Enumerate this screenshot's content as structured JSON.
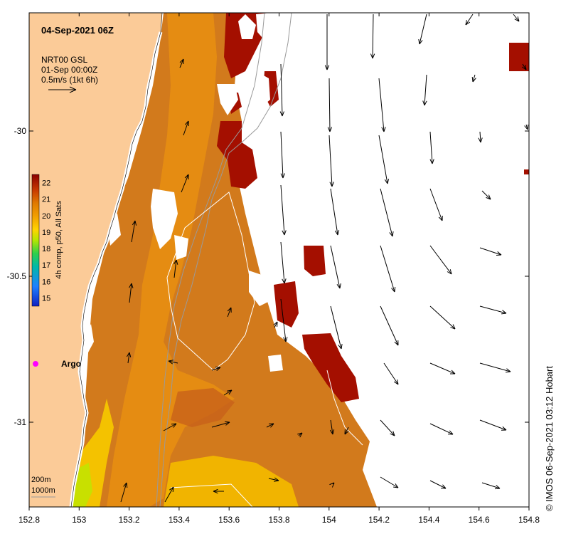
{
  "title": "04-Sep-2021 06Z",
  "current_note": {
    "line1": "NRT00 GSL",
    "line2": "01-Sep 00:00Z",
    "line3": "0.5m/s (1kt 6h)"
  },
  "colorbar": {
    "label": "4h comp, p50, All Sats",
    "ticks": [
      "22",
      "21",
      "20",
      "19",
      "18",
      "17",
      "16",
      "15"
    ],
    "min": 14.5,
    "max": 22.5,
    "stops": [
      "#8b0000",
      "#c83a00",
      "#e07a00",
      "#f2a000",
      "#ffd400",
      "#b4e600",
      "#2fd04a",
      "#00b8a8",
      "#1f80ff",
      "#1020c0"
    ]
  },
  "x_axis": {
    "ticks": [
      "152.8",
      "153",
      "153.2",
      "153.4",
      "153.6",
      "153.8",
      "154",
      "154.2",
      "154.4",
      "154.6",
      "154.8"
    ],
    "range": [
      152.8,
      154.8
    ]
  },
  "y_axis": {
    "ticks": [
      "-30",
      "-30.5",
      "-31"
    ],
    "range": [
      -31.3,
      -29.6
    ]
  },
  "argo_label": "Argo",
  "bathymetry_legend": {
    "line1": "200m",
    "line2": "1000m"
  },
  "credit": "© IMOS 06-Sep-2021 03:12 Hobart",
  "colors": {
    "land": "#fbcb98",
    "argo": "#ff00ff",
    "contour": "#9a9a9a",
    "arrow": "#000000"
  }
}
